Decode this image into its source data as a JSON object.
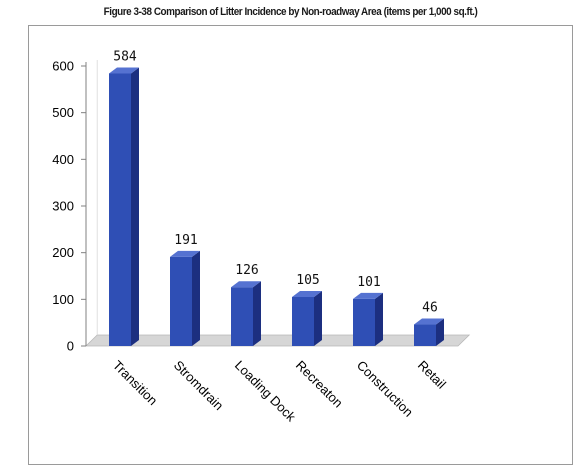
{
  "figure": {
    "title": "Figure 3-38 Comparison of Litter Incidence by Non-roadway Area (items per 1,000 sq.ft.)"
  },
  "chart_data": {
    "type": "bar",
    "title": "Figure 3-38 Comparison of Litter Incidence by Non-roadway Area (items per 1,000 sq.ft.)",
    "categories": [
      "Transition",
      "Stromdrain",
      "Loading Dock",
      "Recreaton",
      "Construction",
      "Retail"
    ],
    "values": [
      584,
      191,
      126,
      105,
      101,
      46
    ],
    "data_labels": [
      "584",
      "191",
      "126",
      "105",
      "101",
      "46"
    ],
    "xlabel": "",
    "ylabel": "",
    "ylim": [
      0,
      600
    ],
    "yticks": [
      "0",
      "100",
      "200",
      "300",
      "400",
      "500",
      "600"
    ],
    "grid": false,
    "legend": "none",
    "style": "3d-column",
    "colors": {
      "bar_front": "#2f4fb5",
      "bar_side": "#1c2f80",
      "bar_top": "#5572d1",
      "floor": "#d6d6d6",
      "axis": "#808080"
    }
  }
}
